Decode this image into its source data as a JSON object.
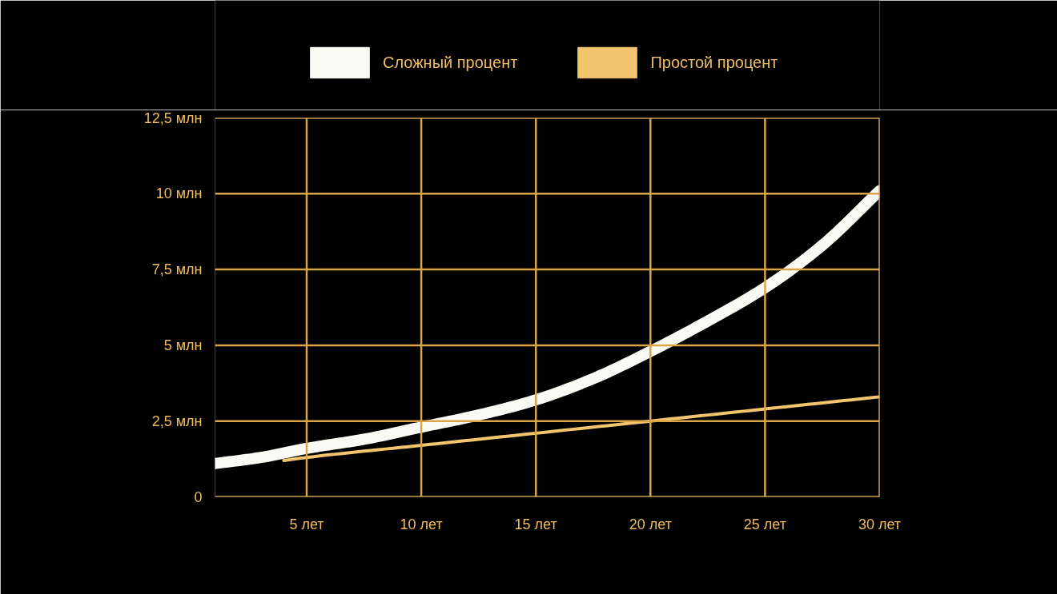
{
  "chart_data": {
    "type": "line",
    "x": [
      1,
      3,
      5,
      7.5,
      10,
      12.5,
      15,
      17.5,
      20,
      22.5,
      25,
      27.5,
      30
    ],
    "series": [
      {
        "name": "Сложный процент",
        "color": "#fafaf5",
        "values": [
          1.1,
          1.3,
          1.6,
          1.9,
          2.3,
          2.7,
          3.2,
          3.9,
          4.8,
          5.8,
          6.9,
          8.3,
          10.1
        ]
      },
      {
        "name": "Простой процент",
        "color": "#f2c46d",
        "x": [
          4,
          5,
          10,
          15,
          20,
          25,
          30
        ],
        "values": [
          1.2,
          1.3,
          1.7,
          2.1,
          2.5,
          2.9,
          3.3
        ]
      }
    ],
    "xlim": [
      1,
      30
    ],
    "ylim": [
      0,
      12.5
    ],
    "xticks": [
      {
        "value": 5,
        "label": "5 лет"
      },
      {
        "value": 10,
        "label": "10 лет"
      },
      {
        "value": 15,
        "label": "15 лет"
      },
      {
        "value": 20,
        "label": "20 лет"
      },
      {
        "value": 25,
        "label": "25 лет"
      },
      {
        "value": 30,
        "label": "30 лет"
      }
    ],
    "yticks": [
      0,
      {
        "value": 2.5,
        "label": "2,5 млн"
      },
      {
        "value": 5,
        "label": "5 млн"
      },
      {
        "value": 7.5,
        "label": "7,5 млн"
      },
      {
        "value": 10,
        "label": "10 млн"
      },
      {
        "value": 12.5,
        "label": "12,5 млн"
      }
    ],
    "grid": true,
    "legend": "top"
  }
}
